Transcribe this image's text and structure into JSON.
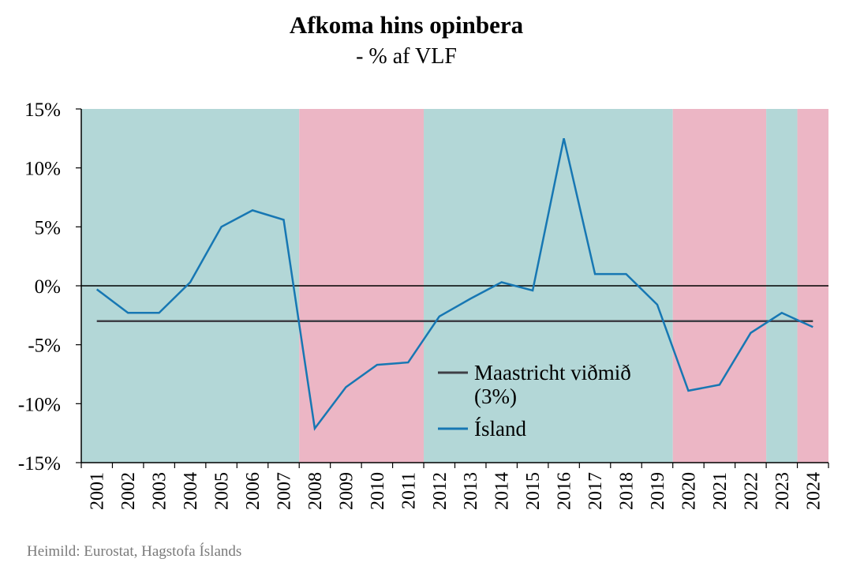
{
  "title": "Afkoma hins opinbera",
  "subtitle": "- % af VLF",
  "source": "Heimild: Eurostat, Hagstofa Íslands",
  "colors": {
    "band_teal": "#b3d7d7",
    "band_pink": "#ecb6c5",
    "island": "#1777b3",
    "maastricht": "#3f3f46"
  },
  "chart_data": {
    "type": "line",
    "title": "Afkoma hins opinbera",
    "subtitle": "- % af VLF",
    "x": [
      "2001",
      "2002",
      "2003",
      "2004",
      "2005",
      "2006",
      "2007",
      "2008",
      "2009",
      "2010",
      "2011",
      "2012",
      "2013",
      "2014",
      "2015",
      "2016",
      "2017",
      "2018",
      "2019",
      "2020",
      "2021",
      "2022",
      "2023",
      "2024"
    ],
    "ylim": [
      -15,
      15
    ],
    "yticks": [
      15,
      10,
      5,
      0,
      -5,
      -10,
      -15
    ],
    "ytick_labels": [
      "15%",
      "10%",
      "5%",
      "0%",
      "-5%",
      "-10%",
      "-15%"
    ],
    "series": [
      {
        "name": "Maastricht viðmið (3%)",
        "legend_lines": [
          "Maastricht viðmið",
          "(3%)"
        ],
        "color": "#3f3f46",
        "values": [
          -3,
          -3,
          -3,
          -3,
          -3,
          -3,
          -3,
          -3,
          -3,
          -3,
          -3,
          -3,
          -3,
          -3,
          -3,
          -3,
          -3,
          -3,
          -3,
          -3,
          -3,
          -3,
          -3,
          -3
        ]
      },
      {
        "name": "Ísland",
        "legend_lines": [
          "Ísland"
        ],
        "color": "#1777b3",
        "values": [
          -0.3,
          -2.3,
          -2.3,
          0.3,
          5.0,
          6.4,
          5.6,
          -12.1,
          -8.6,
          -6.7,
          -6.5,
          -2.6,
          -1.1,
          0.3,
          -0.4,
          12.5,
          1.0,
          1.0,
          -1.6,
          -8.9,
          -8.4,
          -4.0,
          -2.3,
          -3.5
        ]
      }
    ],
    "background_bands": [
      {
        "from": "2001",
        "to": "2007",
        "color": "teal"
      },
      {
        "from": "2008",
        "to": "2011",
        "color": "pink"
      },
      {
        "from": "2012",
        "to": "2019",
        "color": "teal"
      },
      {
        "from": "2020",
        "to": "2022",
        "color": "pink"
      },
      {
        "from": "2023",
        "to": "2023",
        "color": "teal"
      },
      {
        "from": "2024",
        "to": "2024",
        "color": "pink"
      }
    ],
    "legend_position": "center"
  }
}
